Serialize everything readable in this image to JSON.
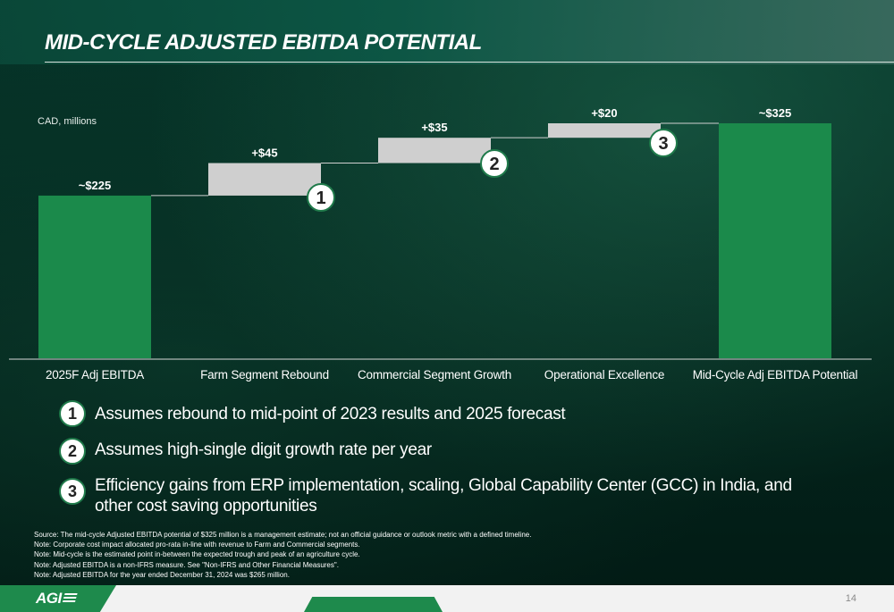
{
  "title": "MID-CYCLE ADJUSTED EBITDA POTENTIAL",
  "unit_label": "CAD, millions",
  "chart_data": {
    "type": "bar",
    "subtype": "waterfall",
    "categories": [
      "2025F Adj EBITDA",
      "Farm Segment Rebound",
      "Commercial Segment Growth",
      "Operational Excellence",
      "Mid-Cycle Adj EBITDA Potential"
    ],
    "values": [
      225,
      45,
      35,
      20,
      325
    ],
    "kinds": [
      "total",
      "increment",
      "increment",
      "increment",
      "total"
    ],
    "data_labels": [
      "~$225",
      "+$45",
      "+$35",
      "+$20",
      "~$325"
    ],
    "markers": [
      "",
      "1",
      "2",
      "3",
      ""
    ],
    "ylabel": "CAD, millions",
    "ylim": [
      0,
      325
    ],
    "colors": {
      "total": "#1b8a4b",
      "increment": "#cfcfcf",
      "connector": "#d0d0d0",
      "baseline": "#d9d9d9"
    }
  },
  "notes": [
    {
      "num": "1",
      "text": "Assumes rebound to mid-point of 2023 results and 2025 forecast"
    },
    {
      "num": "2",
      "text": "Assumes high-single digit growth rate per year"
    },
    {
      "num": "3",
      "text": "Efficiency gains from ERP implementation, scaling, Global Capability Center (GCC) in India, and other cost saving opportunities"
    }
  ],
  "footnotes": [
    "Source: The mid-cycle Adjusted EBITDA potential of $325 million is a management estimate; not an official guidance or outlook metric with a defined timeline.",
    "Note: Corporate cost impact allocated pro-rata in-line with revenue to Farm and Commercial segments.",
    "Note: Mid-cycle is the estimated point in-between the expected trough and peak of an agriculture cycle.",
    "Note: Adjusted EBITDA is a non-IFRS measure. See \"Non-IFRS and Other Financial Measures\".",
    "Note: Adjusted EBITDA for the year ended December 31, 2024 was $265 million."
  ],
  "logo_text": "AGI",
  "page_number": "14"
}
